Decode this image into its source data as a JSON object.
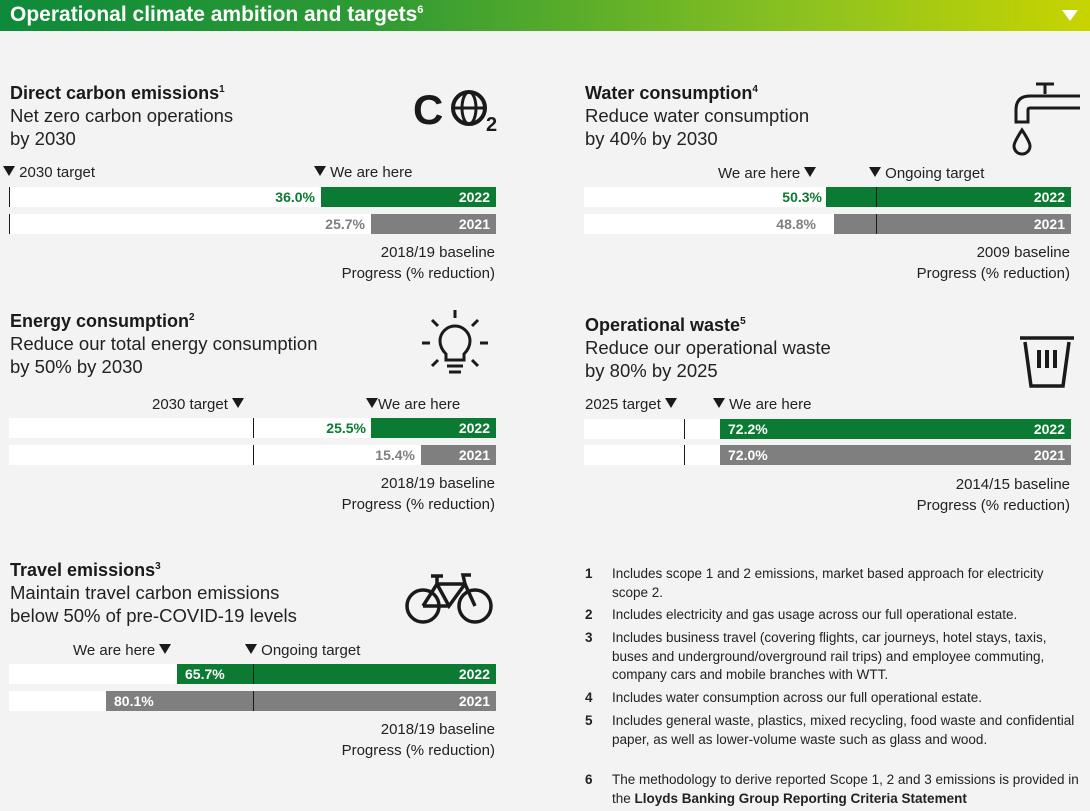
{
  "header": {
    "title": "Operational climate ambition and targets",
    "sup": "6"
  },
  "carbon": {
    "title": "Direct carbon emissions",
    "sup": "1",
    "line1": "Net zero carbon operations",
    "line2": "by 2030",
    "target_label": "2030 target",
    "here_label": "We are here",
    "bar1": {
      "value": "36.0%",
      "year": "2022",
      "fraction": 0.36
    },
    "bar2": {
      "value": "25.7%",
      "year": "2021",
      "fraction": 0.257
    },
    "baseline": "2018/19 baseline",
    "progress": "Progress (% reduction)"
  },
  "water": {
    "title": "Water consumption",
    "sup": "4",
    "line1": "Reduce water consumption",
    "line2": "by 40% by 2030",
    "here_label": "We are here",
    "target_label": "Ongoing target",
    "bar1": {
      "value": "50.3%",
      "year": "2022",
      "fraction": 0.503
    },
    "bar2": {
      "value": "48.8%",
      "year": "2021",
      "fraction": 0.488
    },
    "baseline": "2009 baseline",
    "progress": "Progress (% reduction)"
  },
  "energy": {
    "title": "Energy consumption",
    "sup": "2",
    "line1": "Reduce our total energy consumption",
    "line2": "by 50% by 2030",
    "target_label": "2030 target",
    "here_label": "We are here",
    "bar1": {
      "value": "25.5%",
      "year": "2022",
      "fraction": 0.255
    },
    "bar2": {
      "value": "15.4%",
      "year": "2021",
      "fraction": 0.154
    },
    "baseline": "2018/19 baseline",
    "progress": "Progress (% reduction)"
  },
  "waste": {
    "title": "Operational waste",
    "sup": "5",
    "line1": "Reduce our operational waste",
    "line2": "by 80% by 2025",
    "target_label": "2025 target",
    "here_label": "We are here",
    "bar1": {
      "value": "72.2%",
      "year": "2022",
      "fraction": 0.722
    },
    "bar2": {
      "value": "72.0%",
      "year": "2021",
      "fraction": 0.72
    },
    "baseline": "2014/15 baseline",
    "progress": "Progress (% reduction)"
  },
  "travel": {
    "title": "Travel emissions",
    "sup": "3",
    "line1": "Maintain travel carbon emissions",
    "line2": "below 50% of pre-COVID-19 levels",
    "here_label": "We are here",
    "target_label": "Ongoing target",
    "bar1": {
      "value": "65.7%",
      "year": "2022",
      "fraction": 0.657
    },
    "bar2": {
      "value": "80.1%",
      "year": "2021",
      "fraction": 0.801
    },
    "baseline": "2018/19 baseline",
    "progress": "Progress (% reduction)"
  },
  "icons": {
    "co2": "C",
    "co2_sub": "2"
  },
  "footnotes": [
    {
      "num": "1",
      "text": "Includes scope 1 and 2 emissions, market based approach for electricity scope 2."
    },
    {
      "num": "2",
      "text": "Includes electricity and gas usage across our full operational estate."
    },
    {
      "num": "3",
      "text": "Includes business travel (covering flights, car journeys, hotel stays, taxis, buses and underground/overground rail trips) and employee commuting, company cars and mobile branches with WTT."
    },
    {
      "num": "4",
      "text": "Includes water consumption across our full operational estate."
    },
    {
      "num": "5",
      "text": "Includes general waste, plastics, mixed recycling, food waste and confidential paper, as well as lower-volume waste such as glass and wood."
    },
    {
      "num": "6",
      "text": "The methodology to derive reported Scope 1, 2 and 3 emissions is provided in the ",
      "bold": "Lloyds Banking Group Reporting Criteria Statement"
    }
  ],
  "colors": {
    "green": "#0b7a33",
    "grey": "#7f7f7f"
  }
}
